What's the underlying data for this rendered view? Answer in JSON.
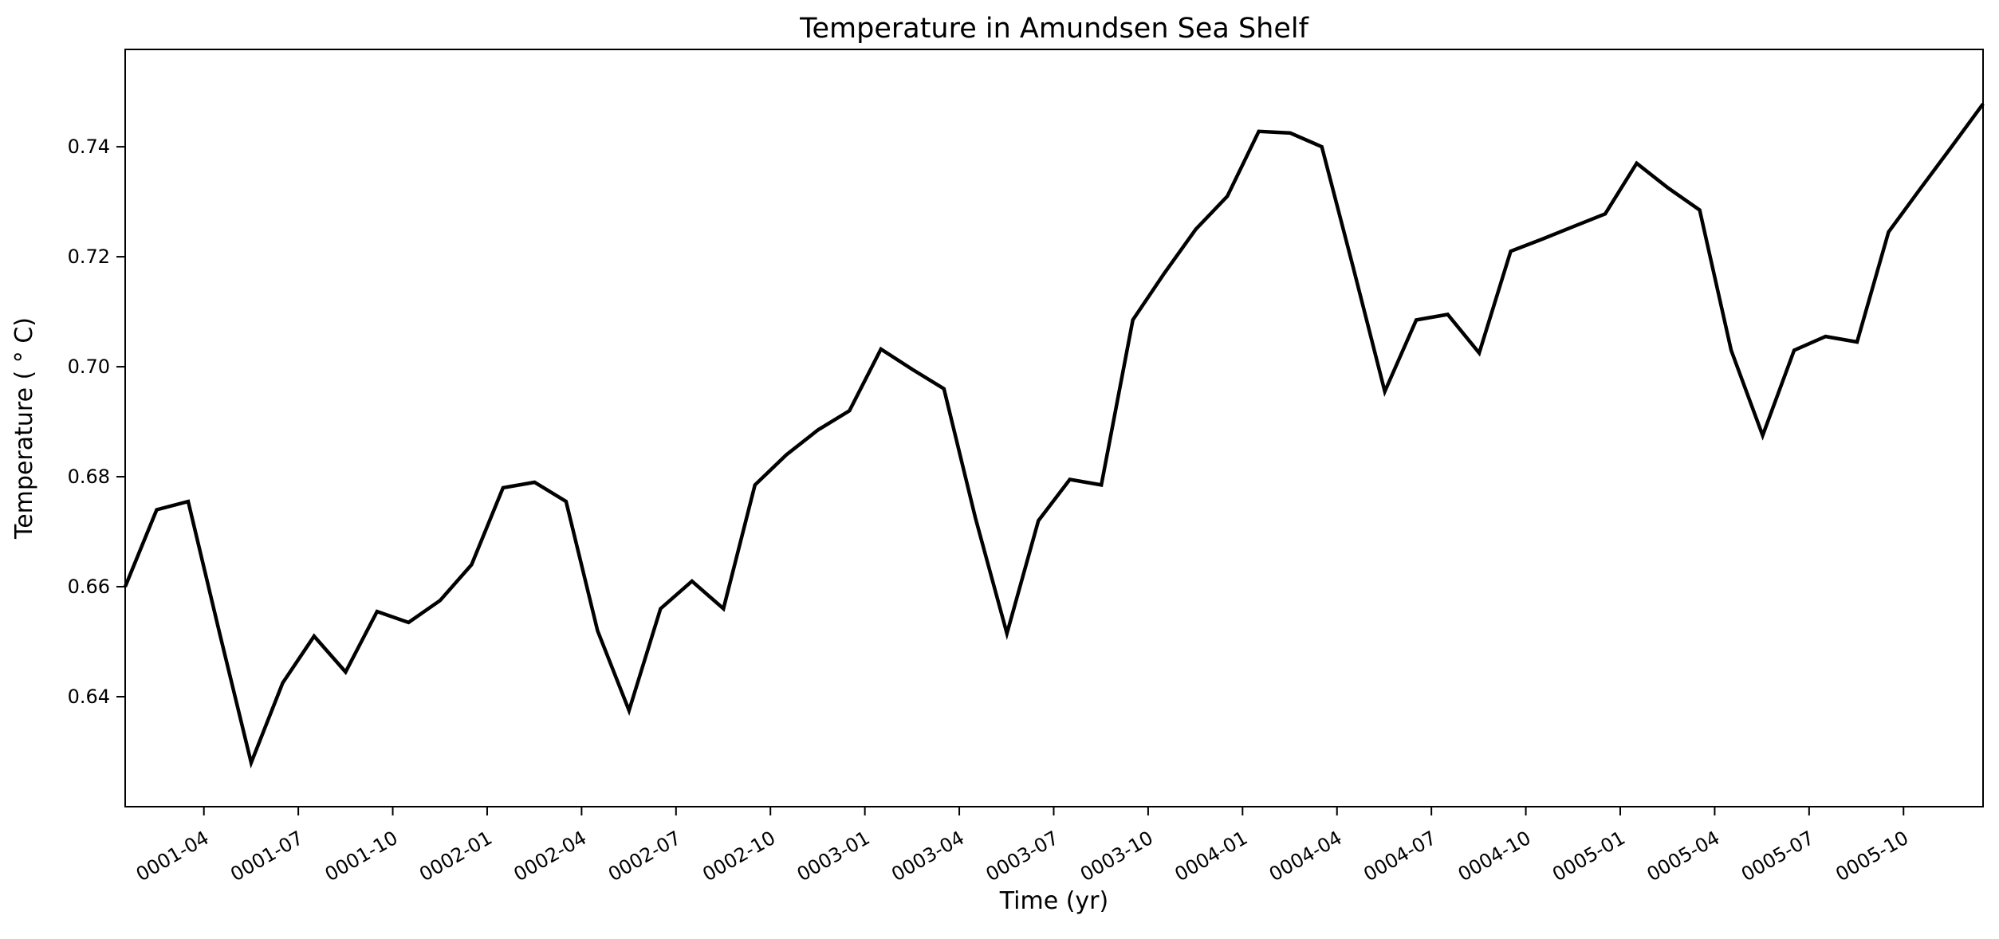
{
  "figure": {
    "title": "Temperature in Amundsen Sea Shelf",
    "xlabel": "Time (yr)",
    "ylabel": "Temperature ( ° C)",
    "background_color": "#ffffff",
    "line_color": "#000000"
  },
  "chart_data": {
    "type": "line",
    "title": "Temperature in Amundsen Sea Shelf",
    "xlabel": "Time (yr)",
    "ylabel": "Temperature (°C)",
    "x": [
      "0001-01",
      "0001-02",
      "0001-03",
      "0001-04",
      "0001-05",
      "0001-06",
      "0001-07",
      "0001-08",
      "0001-09",
      "0001-10",
      "0001-11",
      "0001-12",
      "0002-01",
      "0002-02",
      "0002-03",
      "0002-04",
      "0002-05",
      "0002-06",
      "0002-07",
      "0002-08",
      "0002-09",
      "0002-10",
      "0002-11",
      "0002-12",
      "0003-01",
      "0003-02",
      "0003-03",
      "0003-04",
      "0003-05",
      "0003-06",
      "0003-07",
      "0003-08",
      "0003-09",
      "0003-10",
      "0003-11",
      "0003-12",
      "0004-01",
      "0004-02",
      "0004-03",
      "0004-04",
      "0004-05",
      "0004-06",
      "0004-07",
      "0004-08",
      "0004-09",
      "0004-10",
      "0004-11",
      "0004-12",
      "0005-01",
      "0005-02",
      "0005-03",
      "0005-04",
      "0005-05",
      "0005-06",
      "0005-07",
      "0005-08",
      "0005-09",
      "0005-10",
      "0005-11",
      "0005-12"
    ],
    "series": [
      {
        "name": "Temperature",
        "values": [
          0.66,
          0.674,
          0.6755,
          0.6515,
          0.628,
          0.6425,
          0.651,
          0.6445,
          0.6555,
          0.6535,
          0.6575,
          0.664,
          0.678,
          0.679,
          0.6755,
          0.652,
          0.6375,
          0.656,
          0.661,
          0.656,
          0.6785,
          0.684,
          0.6885,
          0.692,
          0.7032,
          0.6995,
          0.696,
          0.6725,
          0.6515,
          0.672,
          0.6795,
          0.6785,
          0.7085,
          0.717,
          0.725,
          0.731,
          0.7428,
          0.7425,
          0.74,
          0.718,
          0.6955,
          0.7085,
          0.7095,
          0.7025,
          0.721,
          0.7232,
          0.7255,
          0.7278,
          0.737,
          0.7325,
          0.7285,
          0.703,
          0.6875,
          0.703,
          0.7055,
          0.7045,
          0.7245,
          0.7323,
          0.74,
          0.7478
        ]
      }
    ],
    "xtick_labels": [
      "0001-04",
      "0001-07",
      "0001-10",
      "0002-01",
      "0002-04",
      "0002-07",
      "0002-10",
      "0003-01",
      "0003-04",
      "0003-07",
      "0003-10",
      "0004-01",
      "0004-04",
      "0004-07",
      "0004-10",
      "0005-01",
      "0005-04",
      "0005-07",
      "0005-10"
    ],
    "ytick_labels": [
      "0.64",
      "0.66",
      "0.68",
      "0.70",
      "0.72",
      "0.74"
    ],
    "ylim": [
      0.62,
      0.7577
    ],
    "xtick_rotation_deg": 30,
    "grid": false,
    "legend": false,
    "line_width": 4.5,
    "line_color": "#000000"
  }
}
